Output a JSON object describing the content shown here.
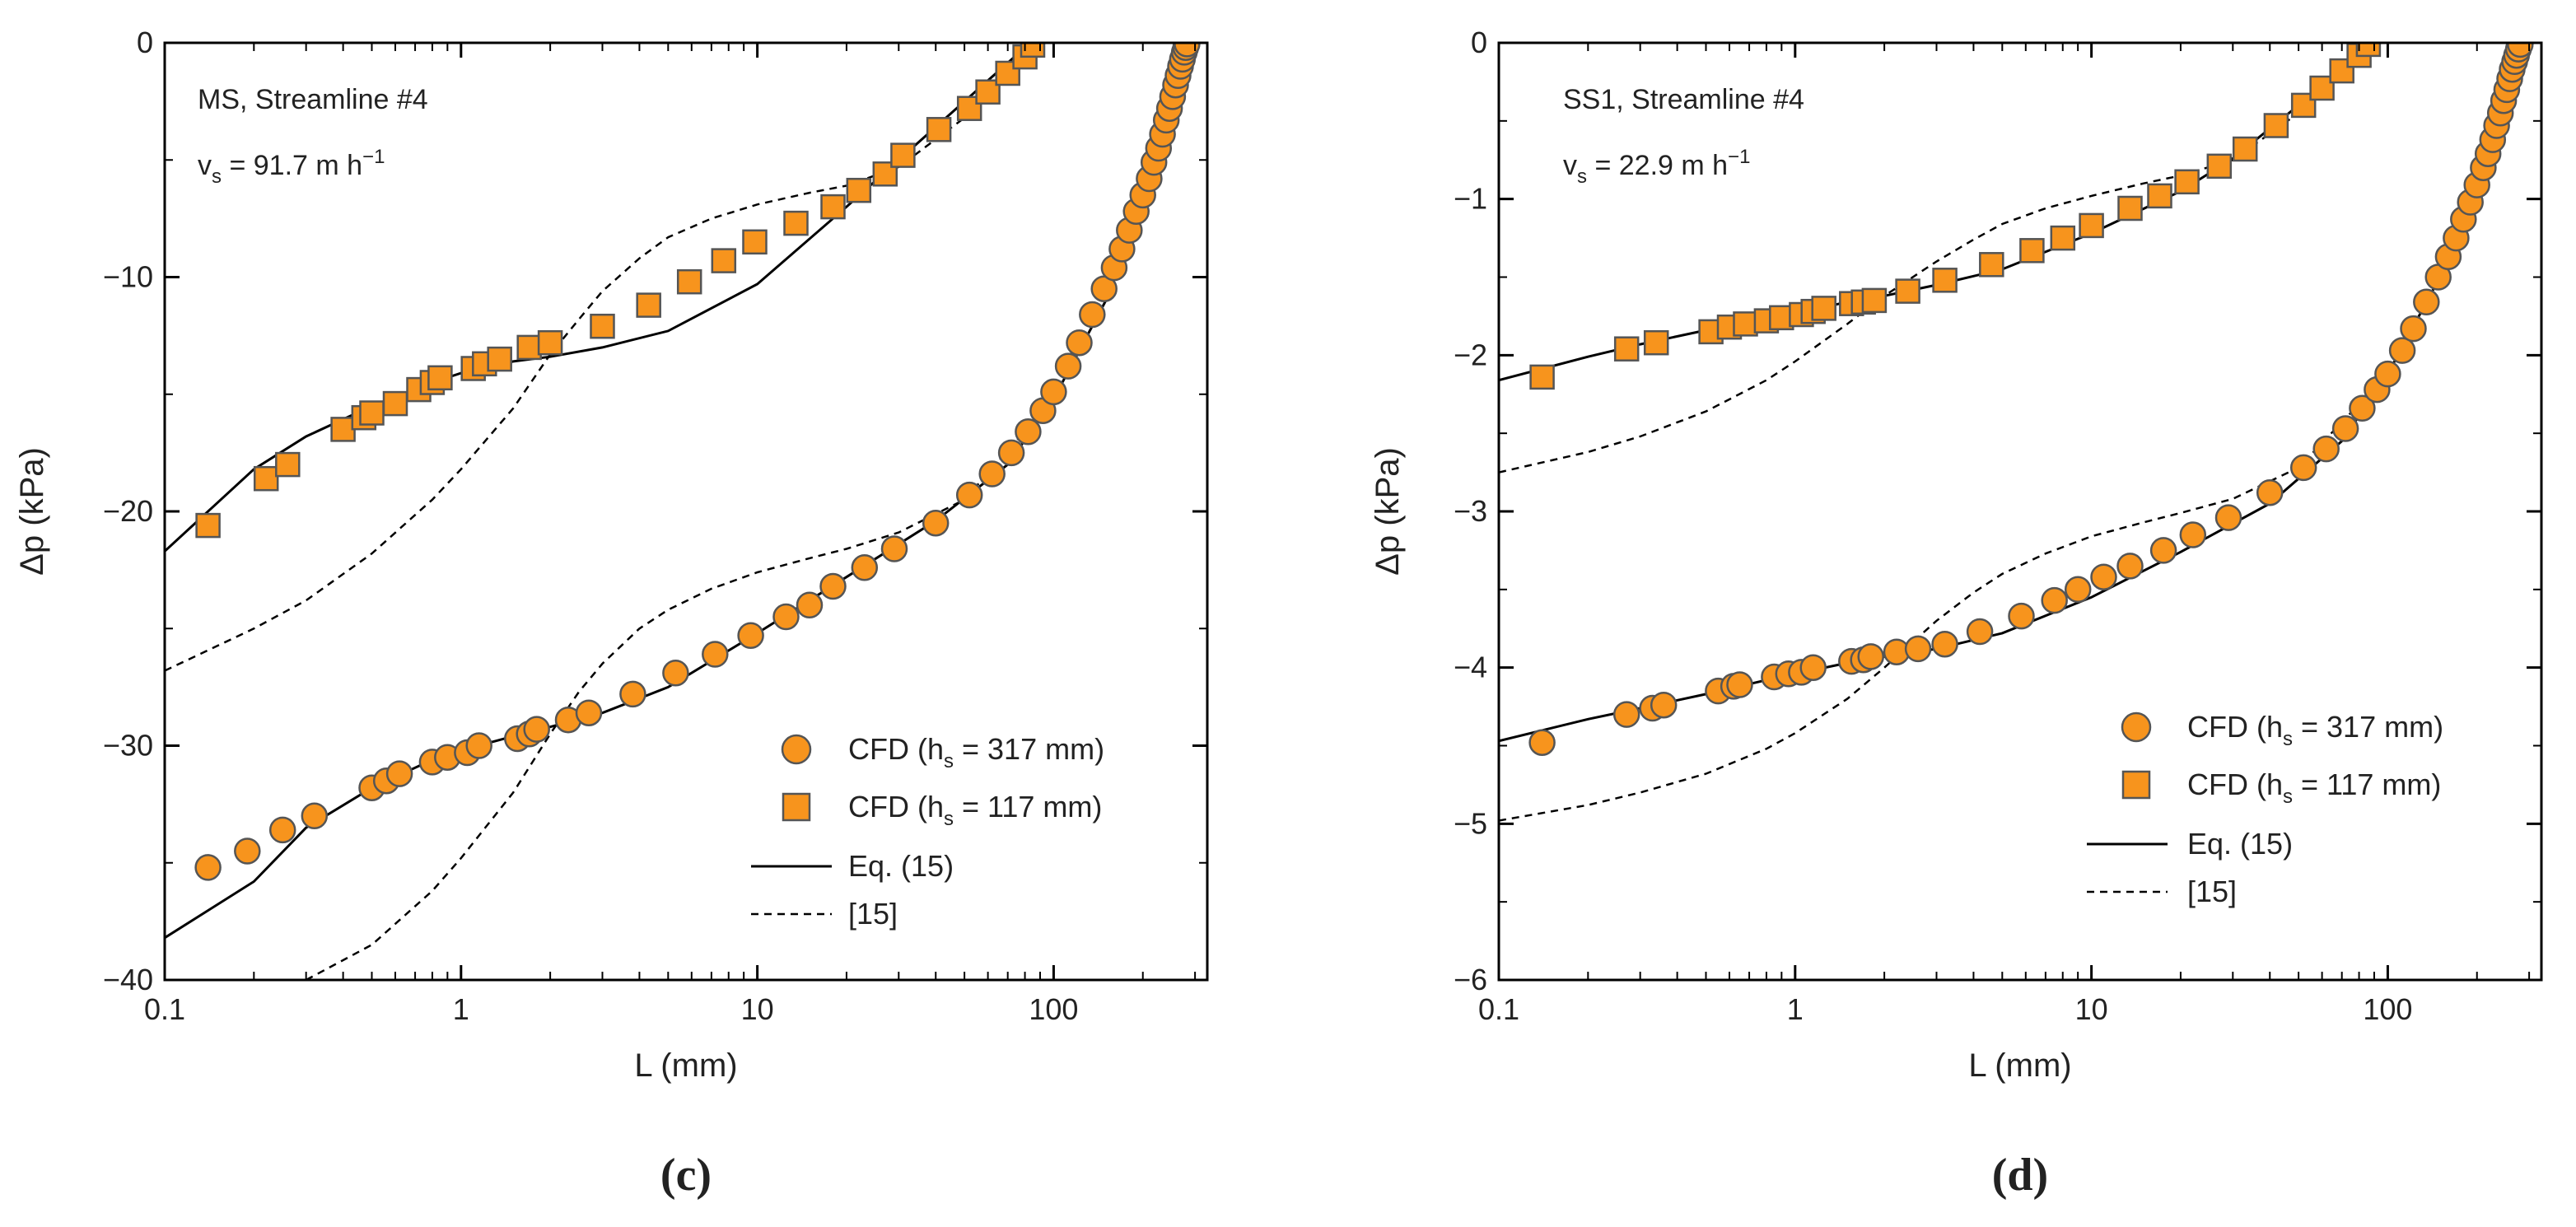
{
  "colors": {
    "marker_fill": "#F7941D",
    "marker_edge": "#555555",
    "line": "#000000",
    "axis": "#000000"
  },
  "chart_data": [
    {
      "panel_label": "(c)",
      "type": "scatter",
      "x_scale": "log",
      "xlim": [
        0.1,
        330
      ],
      "ylim": [
        -40,
        0
      ],
      "xlabel": "L (mm)",
      "ylabel": "Δp (kPa)",
      "xticks": [
        0.1,
        1,
        10,
        100
      ],
      "xtick_labels": [
        "0.1",
        "1",
        "10",
        "100"
      ],
      "yticks": [
        -40,
        -30,
        -20,
        -10,
        0
      ],
      "ytick_labels": [
        "−40",
        "−30",
        "−20",
        "−10",
        "0"
      ],
      "annotation_line1": "MS, Streamline #4",
      "annotation_line2_prefix": "v",
      "annotation_line2_sub": "s",
      "annotation_line2_rest": " = 91.7 m h",
      "annotation_line2_sup": "−1",
      "legend": {
        "position": "bottom-right",
        "entries": [
          {
            "marker": "circle",
            "prefix": "CFD (h",
            "sub": "s",
            "suffix": " = 317 mm)"
          },
          {
            "marker": "square",
            "prefix": "CFD (h",
            "sub": "s",
            "suffix": " = 117 mm)"
          },
          {
            "marker": "solid-line",
            "label": "Eq. (15)"
          },
          {
            "marker": "dashed-line",
            "label": "[15]"
          }
        ]
      },
      "series": [
        {
          "name": "CFD (hs = 317 mm)",
          "kind": "scatter",
          "marker": "circle",
          "x": [
            0.14,
            0.19,
            0.25,
            0.32,
            0.5,
            0.56,
            0.62,
            0.8,
            0.9,
            1.05,
            1.15,
            1.55,
            1.7,
            1.8,
            2.3,
            2.7,
            3.8,
            5.3,
            7.2,
            9.5,
            12.5,
            15,
            18,
            23,
            29,
            40,
            52,
            62,
            72,
            82,
            92,
            100,
            112,
            122,
            135,
            148,
            160,
            170,
            180,
            190,
            200,
            210,
            218,
            226,
            233,
            240,
            246,
            252,
            258,
            263,
            268,
            272,
            276,
            279,
            282
          ],
          "y": [
            -35.2,
            -34.5,
            -33.6,
            -33.0,
            -31.8,
            -31.5,
            -31.2,
            -30.7,
            -30.5,
            -30.3,
            -30.0,
            -29.7,
            -29.5,
            -29.3,
            -28.9,
            -28.6,
            -27.8,
            -26.9,
            -26.1,
            -25.3,
            -24.5,
            -24.0,
            -23.2,
            -22.4,
            -21.6,
            -20.5,
            -19.3,
            -18.4,
            -17.5,
            -16.6,
            -15.7,
            -14.9,
            -13.8,
            -12.8,
            -11.6,
            -10.5,
            -9.6,
            -8.8,
            -8.0,
            -7.2,
            -6.5,
            -5.8,
            -5.1,
            -4.5,
            -3.9,
            -3.3,
            -2.8,
            -2.3,
            -1.8,
            -1.4,
            -1.0,
            -0.7,
            -0.4,
            -0.2,
            -0.05
          ]
        },
        {
          "name": "CFD (hs = 117 mm)",
          "kind": "scatter",
          "marker": "square",
          "x": [
            0.14,
            0.22,
            0.26,
            0.4,
            0.47,
            0.5,
            0.6,
            0.72,
            0.8,
            0.85,
            1.1,
            1.2,
            1.35,
            1.7,
            2.0,
            3.0,
            4.3,
            5.9,
            7.7,
            9.8,
            13.5,
            18,
            22,
            27,
            31,
            41,
            52,
            60,
            70,
            80,
            85
          ],
          "y": [
            -20.6,
            -18.6,
            -18.0,
            -16.5,
            -16.0,
            -15.8,
            -15.4,
            -14.8,
            -14.5,
            -14.3,
            -13.9,
            -13.7,
            -13.5,
            -13.0,
            -12.8,
            -12.1,
            -11.2,
            -10.2,
            -9.3,
            -8.5,
            -7.7,
            -7.0,
            -6.3,
            -5.6,
            -4.8,
            -3.7,
            -2.8,
            -2.1,
            -1.3,
            -0.6,
            -0.1
          ]
        },
        {
          "name": "Eq. (15) (317 mm)",
          "kind": "solid-line",
          "x": [
            0.1,
            0.2,
            0.3,
            0.5,
            0.8,
            1.0,
            1.5,
            2.0,
            3.0,
            5.0,
            10,
            20,
            40,
            70,
            100,
            150,
            200,
            250,
            285
          ],
          "y": [
            -38.2,
            -35.8,
            -33.5,
            -31.8,
            -30.6,
            -30.2,
            -29.6,
            -29.2,
            -28.6,
            -27.5,
            -25.2,
            -22.8,
            -20.4,
            -18.0,
            -15.2,
            -11.0,
            -7.0,
            -3.2,
            0.0
          ]
        },
        {
          "name": "[15] (317 mm)",
          "kind": "dashed-line",
          "x": [
            0.3,
            0.5,
            0.8,
            1.0,
            1.5,
            2.0,
            2.5,
            3.0,
            4.0,
            5.0,
            7.0,
            10,
            15,
            20,
            30,
            50,
            100,
            150,
            200,
            250,
            285
          ],
          "y": [
            -40.0,
            -38.5,
            -36.2,
            -34.8,
            -32.0,
            -29.5,
            -27.7,
            -26.5,
            -25.0,
            -24.2,
            -23.3,
            -22.6,
            -22.0,
            -21.6,
            -20.9,
            -19.5,
            -15.2,
            -11.0,
            -7.0,
            -3.2,
            0.0
          ]
        },
        {
          "name": "Eq. (15) (117 mm)",
          "kind": "solid-line",
          "x": [
            0.1,
            0.2,
            0.3,
            0.5,
            0.8,
            1.0,
            1.5,
            2.0,
            3.0,
            5.0,
            10,
            20,
            30,
            50,
            80,
            90
          ],
          "y": [
            -21.7,
            -18.2,
            -16.8,
            -15.5,
            -14.5,
            -14.1,
            -13.6,
            -13.4,
            -13.0,
            -12.3,
            -10.3,
            -7.0,
            -5.0,
            -2.5,
            -0.2,
            0.0
          ]
        },
        {
          "name": "[15] (117 mm)",
          "kind": "dashed-line",
          "x": [
            0.1,
            0.2,
            0.3,
            0.5,
            0.8,
            1.0,
            1.5,
            2.0,
            2.5,
            3.0,
            4.0,
            5.0,
            7.0,
            10,
            15,
            20,
            30,
            50,
            80,
            90
          ],
          "y": [
            -26.8,
            -25.0,
            -23.8,
            -21.8,
            -19.5,
            -18.2,
            -15.6,
            -13.3,
            -11.8,
            -10.6,
            -9.2,
            -8.3,
            -7.5,
            -6.9,
            -6.4,
            -6.1,
            -5.3,
            -3.2,
            -0.5,
            0.0
          ]
        }
      ]
    },
    {
      "panel_label": "(d)",
      "type": "scatter",
      "x_scale": "log",
      "xlim": [
        0.1,
        330
      ],
      "ylim": [
        -6,
        0
      ],
      "xlabel": "L (mm)",
      "ylabel": "Δp (kPa)",
      "xticks": [
        0.1,
        1,
        10,
        100
      ],
      "xtick_labels": [
        "0.1",
        "1",
        "10",
        "100"
      ],
      "yticks": [
        -6,
        -5,
        -4,
        -3,
        -2,
        -1,
        0
      ],
      "ytick_labels": [
        "−6",
        "−5",
        "−4",
        "−3",
        "−2",
        "−1",
        "0"
      ],
      "annotation_line1": "SS1, Streamline #4",
      "annotation_line2_prefix": "v",
      "annotation_line2_sub": "s",
      "annotation_line2_rest": " = 22.9 m h",
      "annotation_line2_sup": "−1",
      "legend": {
        "position": "bottom-right",
        "entries": [
          {
            "marker": "circle",
            "prefix": "CFD (h",
            "sub": "s",
            "suffix": " = 317 mm)"
          },
          {
            "marker": "square",
            "prefix": "CFD (h",
            "sub": "s",
            "suffix": " = 117 mm)"
          },
          {
            "marker": "solid-line",
            "label": "Eq. (15)"
          },
          {
            "marker": "dashed-line",
            "label": "[15]"
          }
        ]
      },
      "series": [
        {
          "name": "CFD (hs = 317 mm)",
          "kind": "scatter",
          "marker": "circle",
          "x": [
            0.14,
            0.27,
            0.33,
            0.36,
            0.55,
            0.62,
            0.65,
            0.85,
            0.95,
            1.05,
            1.15,
            1.55,
            1.7,
            1.8,
            2.2,
            2.6,
            3.2,
            4.2,
            5.8,
            7.5,
            9.0,
            11.0,
            13.5,
            17.5,
            22,
            29,
            40,
            52,
            62,
            72,
            82,
            92,
            100,
            112,
            122,
            135,
            148,
            160,
            170,
            180,
            190,
            200,
            210,
            218,
            226,
            233,
            240,
            246,
            252,
            258,
            263,
            268,
            272,
            276,
            280
          ],
          "y": [
            -4.48,
            -4.3,
            -4.26,
            -4.24,
            -4.15,
            -4.12,
            -4.11,
            -4.06,
            -4.04,
            -4.03,
            -4.0,
            -3.96,
            -3.95,
            -3.93,
            -3.9,
            -3.88,
            -3.85,
            -3.77,
            -3.67,
            -3.57,
            -3.5,
            -3.42,
            -3.35,
            -3.25,
            -3.15,
            -3.04,
            -2.88,
            -2.72,
            -2.6,
            -2.47,
            -2.34,
            -2.22,
            -2.12,
            -1.97,
            -1.83,
            -1.66,
            -1.5,
            -1.37,
            -1.25,
            -1.13,
            -1.02,
            -0.91,
            -0.8,
            -0.71,
            -0.62,
            -0.53,
            -0.45,
            -0.37,
            -0.3,
            -0.23,
            -0.17,
            -0.12,
            -0.08,
            -0.04,
            -0.01
          ]
        },
        {
          "name": "CFD (hs = 117 mm)",
          "kind": "scatter",
          "marker": "square",
          "x": [
            0.14,
            0.27,
            0.34,
            0.52,
            0.6,
            0.68,
            0.8,
            0.9,
            1.05,
            1.15,
            1.25,
            1.55,
            1.7,
            1.85,
            2.4,
            3.2,
            4.6,
            6.3,
            8.0,
            10,
            13.5,
            17,
            21,
            27,
            33,
            42,
            52,
            60,
            70,
            80,
            86
          ],
          "y": [
            -2.14,
            -1.96,
            -1.92,
            -1.85,
            -1.82,
            -1.8,
            -1.78,
            -1.76,
            -1.74,
            -1.72,
            -1.7,
            -1.67,
            -1.66,
            -1.65,
            -1.59,
            -1.52,
            -1.42,
            -1.33,
            -1.25,
            -1.17,
            -1.06,
            -0.98,
            -0.89,
            -0.79,
            -0.68,
            -0.53,
            -0.4,
            -0.29,
            -0.18,
            -0.08,
            -0.01
          ]
        },
        {
          "name": "Eq. (15) (317 mm)",
          "kind": "solid-line",
          "x": [
            0.1,
            0.2,
            0.3,
            0.5,
            0.8,
            1.0,
            1.5,
            2.0,
            3.0,
            5.0,
            10,
            20,
            40,
            70,
            100,
            150,
            200,
            250,
            285
          ],
          "y": [
            -4.47,
            -4.33,
            -4.26,
            -4.17,
            -4.08,
            -4.04,
            -3.97,
            -3.93,
            -3.88,
            -3.78,
            -3.55,
            -3.26,
            -2.95,
            -2.55,
            -2.12,
            -1.5,
            -0.95,
            -0.42,
            0.0
          ]
        },
        {
          "name": "[15] (317 mm)",
          "kind": "dashed-line",
          "x": [
            0.1,
            0.2,
            0.3,
            0.5,
            0.8,
            1.0,
            1.5,
            2.0,
            3.0,
            4.0,
            5.0,
            7.0,
            10,
            15,
            20,
            30,
            50,
            100,
            150,
            200,
            250,
            285
          ],
          "y": [
            -4.98,
            -4.88,
            -4.8,
            -4.68,
            -4.52,
            -4.42,
            -4.2,
            -4.0,
            -3.7,
            -3.52,
            -3.4,
            -3.27,
            -3.16,
            -3.07,
            -3.01,
            -2.92,
            -2.72,
            -2.12,
            -1.5,
            -0.95,
            -0.42,
            0.0
          ]
        },
        {
          "name": "Eq. (15) (117 mm)",
          "kind": "solid-line",
          "x": [
            0.1,
            0.2,
            0.3,
            0.5,
            0.8,
            1.0,
            1.5,
            2.0,
            3.0,
            5.0,
            10,
            20,
            30,
            50,
            80,
            90
          ],
          "y": [
            -2.16,
            -2.01,
            -1.93,
            -1.84,
            -1.76,
            -1.73,
            -1.66,
            -1.62,
            -1.55,
            -1.45,
            -1.22,
            -0.95,
            -0.74,
            -0.4,
            -0.05,
            0.0
          ]
        },
        {
          "name": "[15] (117 mm)",
          "kind": "dashed-line",
          "x": [
            0.1,
            0.2,
            0.3,
            0.5,
            0.8,
            1.0,
            1.5,
            2.0,
            3.0,
            4.0,
            5.0,
            7.0,
            10,
            15,
            20,
            30,
            50,
            80,
            90
          ],
          "y": [
            -2.75,
            -2.62,
            -2.52,
            -2.36,
            -2.16,
            -2.04,
            -1.8,
            -1.62,
            -1.4,
            -1.26,
            -1.16,
            -1.06,
            -0.98,
            -0.9,
            -0.85,
            -0.75,
            -0.45,
            -0.06,
            0.0
          ]
        }
      ]
    }
  ]
}
